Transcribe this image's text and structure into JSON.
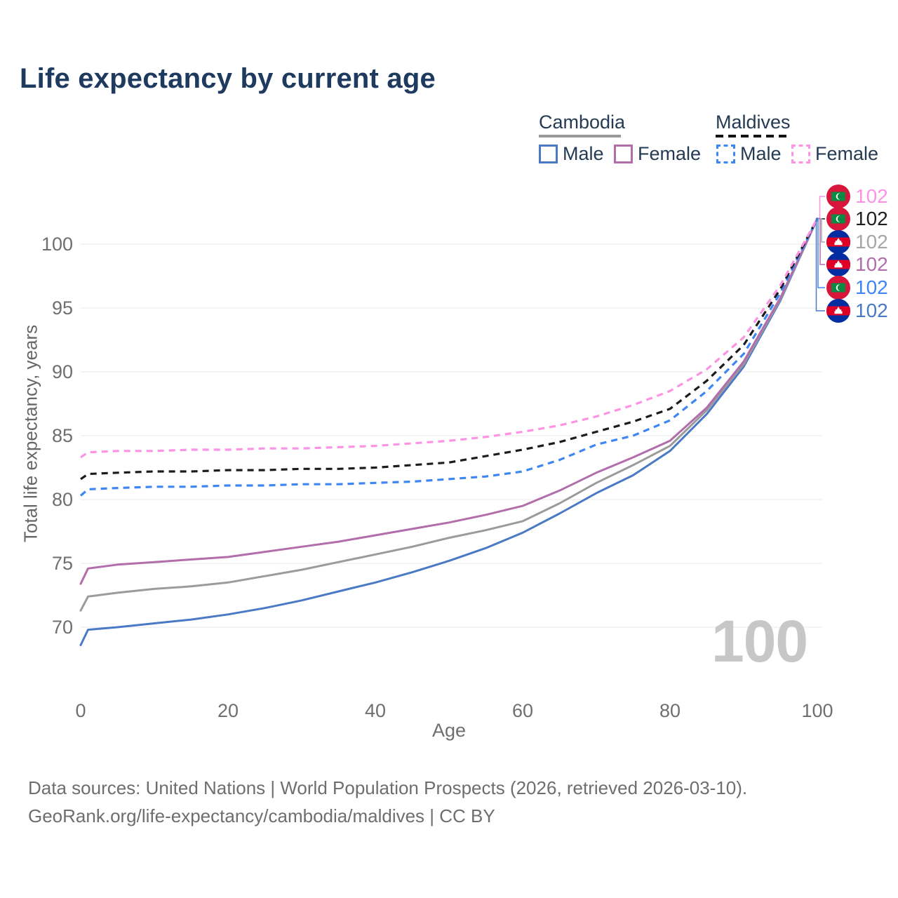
{
  "title": "Life expectancy by current age",
  "legend": {
    "groups": [
      {
        "label": "Cambodia",
        "line_style": "solid",
        "underline_color": "#999999",
        "items": [
          {
            "label": "Male",
            "color": "#4a79c5",
            "dashed": false
          },
          {
            "label": "Female",
            "color": "#b26dab",
            "dashed": false
          }
        ]
      },
      {
        "label": "Maldives",
        "line_style": "dashed",
        "underline_color": "#141414",
        "items": [
          {
            "label": "Male",
            "color": "#3e86f2",
            "dashed": true
          },
          {
            "label": "Female",
            "color": "#fc93e5",
            "dashed": true
          }
        ]
      }
    ]
  },
  "chart_data": {
    "type": "line",
    "title": "Life expectancy by current age",
    "xlabel": "Age",
    "ylabel": "Total life expectancy, years",
    "xlim": [
      0,
      100
    ],
    "ylim": [
      67,
      103
    ],
    "xticks": [
      0,
      20,
      40,
      60,
      80,
      100
    ],
    "yticks": [
      70,
      75,
      80,
      85,
      90,
      95,
      100
    ],
    "grid": "horizontal-only",
    "grid_color": "#e9e9e9",
    "legend_position": "top-right",
    "x": [
      0,
      1,
      5,
      10,
      15,
      20,
      25,
      30,
      35,
      40,
      45,
      50,
      55,
      60,
      65,
      70,
      75,
      80,
      85,
      90,
      95,
      100
    ],
    "series": [
      {
        "name": "Cambodia Male",
        "country": "cambodia",
        "sex": "male",
        "color": "#4a79c5",
        "dashed": false,
        "values": [
          68.6,
          69.8,
          70.0,
          70.3,
          70.6,
          71.0,
          71.5,
          72.1,
          72.8,
          73.5,
          74.3,
          75.2,
          76.2,
          77.4,
          78.9,
          80.5,
          81.9,
          83.8,
          86.7,
          90.4,
          95.6,
          102
        ]
      },
      {
        "name": "Cambodia Total",
        "country": "cambodia",
        "sex": "all",
        "color": "#9b9b9b",
        "dashed": false,
        "values": [
          71.3,
          72.4,
          72.7,
          73.0,
          73.2,
          73.5,
          74.0,
          74.5,
          75.1,
          75.7,
          76.3,
          77.0,
          77.6,
          78.3,
          79.7,
          81.3,
          82.7,
          84.2,
          87.0,
          90.6,
          95.7,
          102
        ]
      },
      {
        "name": "Cambodia Female",
        "country": "cambodia",
        "sex": "female",
        "color": "#b26dab",
        "dashed": false,
        "values": [
          73.4,
          74.6,
          74.9,
          75.1,
          75.3,
          75.5,
          75.9,
          76.3,
          76.7,
          77.2,
          77.7,
          78.2,
          78.8,
          79.5,
          80.7,
          82.1,
          83.3,
          84.6,
          87.2,
          90.8,
          95.8,
          102
        ]
      },
      {
        "name": "Maldives Male",
        "country": "maldives",
        "sex": "male",
        "color": "#3e86f2",
        "dashed": true,
        "values": [
          80.3,
          80.8,
          80.9,
          81.0,
          81.0,
          81.1,
          81.1,
          81.2,
          81.2,
          81.3,
          81.4,
          81.6,
          81.8,
          82.2,
          83.1,
          84.3,
          85.0,
          86.2,
          88.5,
          91.4,
          96.2,
          102
        ]
      },
      {
        "name": "Maldives Total",
        "country": "maldives",
        "sex": "all",
        "color": "#1c1c1c",
        "dashed": true,
        "values": [
          81.6,
          82.0,
          82.1,
          82.2,
          82.2,
          82.3,
          82.3,
          82.4,
          82.4,
          82.5,
          82.7,
          82.9,
          83.4,
          83.9,
          84.5,
          85.3,
          86.1,
          87.1,
          89.3,
          92.1,
          96.5,
          102
        ]
      },
      {
        "name": "Maldives Female",
        "country": "maldives",
        "sex": "female",
        "color": "#fc93e5",
        "dashed": true,
        "values": [
          83.3,
          83.7,
          83.8,
          83.8,
          83.9,
          83.9,
          84.0,
          84.0,
          84.1,
          84.2,
          84.4,
          84.6,
          84.9,
          85.3,
          85.8,
          86.5,
          87.4,
          88.5,
          90.2,
          92.7,
          96.8,
          102
        ]
      }
    ],
    "end_labels": [
      {
        "series": "Maldives Female",
        "country": "maldives",
        "value": "102",
        "color": "#fc93e5"
      },
      {
        "series": "Maldives Total",
        "country": "maldives",
        "value": "102",
        "color": "#1f1f1f"
      },
      {
        "series": "Cambodia Total",
        "country": "cambodia",
        "value": "102",
        "color": "#a6a6a6"
      },
      {
        "series": "Cambodia Female",
        "country": "cambodia",
        "value": "102",
        "color": "#b26dab"
      },
      {
        "series": "Maldives Male",
        "country": "maldives",
        "value": "102",
        "color": "#3e86f2"
      },
      {
        "series": "Cambodia Male",
        "country": "cambodia",
        "value": "102",
        "color": "#4a79c5"
      }
    ]
  },
  "watermark": "100",
  "footer": {
    "line1": "Data sources: United Nations | World Population Prospects (2026, retrieved 2026-03-10).",
    "line2": "GeoRank.org/life-expectancy/cambodia/maldives | CC BY"
  }
}
